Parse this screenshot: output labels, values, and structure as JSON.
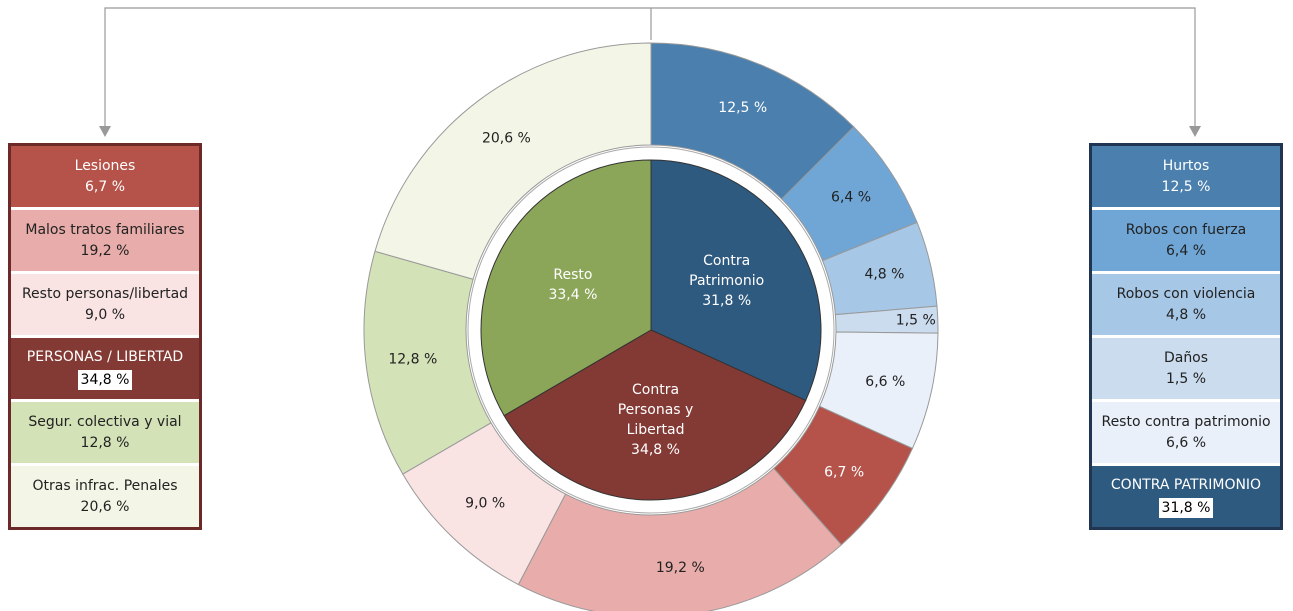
{
  "chart_data": {
    "type": "sunburst",
    "inner": {
      "categories": [
        "Contra\nPatrimonio",
        "Contra\nPersonas y\nLibertad",
        "Resto"
      ],
      "values": [
        31.8,
        34.8,
        33.4
      ],
      "value_labels": [
        "31,8 %",
        "34,8 %",
        "33,4 %"
      ],
      "colors": [
        "#2e5a80",
        "#843a34",
        "#8ba658"
      ]
    },
    "outer": {
      "categories": [
        "Hurtos",
        "Robos con fuerza",
        "Robos con violencia",
        "Daños",
        "Resto contra patrimonio",
        "Lesiones",
        "Malos tratos familiares",
        "Resto personas/libertad",
        "Segur. colectiva y vial",
        "Otras infrac. Penales"
      ],
      "values": [
        12.5,
        6.4,
        4.8,
        1.5,
        6.6,
        6.7,
        19.2,
        9.0,
        12.8,
        20.6
      ],
      "value_labels": [
        "12,5 %",
        "6,4 %",
        "4,8 %",
        "1,5 %",
        "6,6 %",
        "6,7 %",
        "19,2 %",
        "9,0 %",
        "12,8 %",
        "20,6 %"
      ],
      "colors": [
        "#4a7fae",
        "#6fa6d6",
        "#a7c7e7",
        "#cbdcee",
        "#e9f0fa",
        "#b5524a",
        "#e8adaa",
        "#f9e3e3",
        "#d4e2b8",
        "#f3f6e6"
      ]
    },
    "group_titles": [
      "CONTRA PATRIMONIO",
      "PERSONAS / LIBERTAD"
    ]
  }
}
